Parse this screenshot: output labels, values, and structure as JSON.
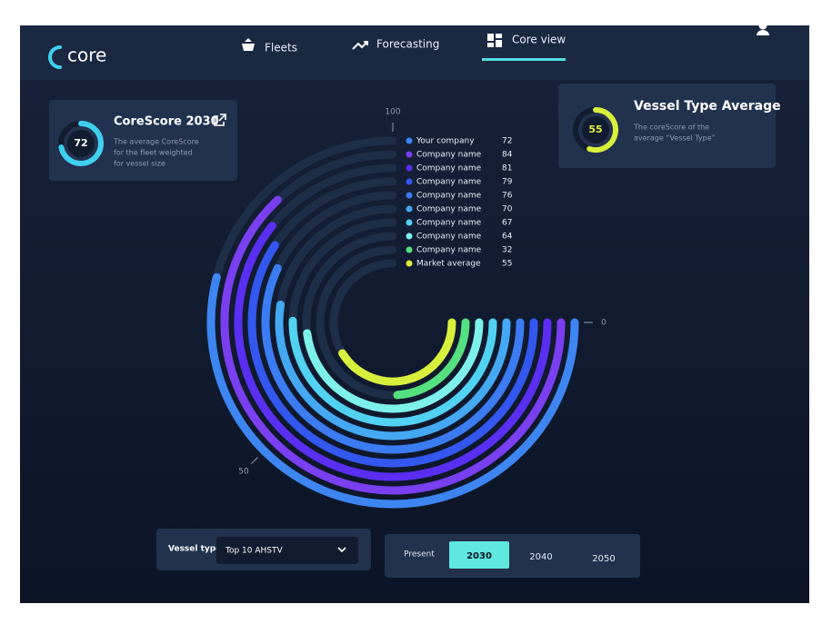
{
  "nav": {
    "logo": "core",
    "items": [
      "Fleets",
      "Forecasting",
      "Core view"
    ]
  },
  "cards": [
    {
      "title": "CoreScore 2030",
      "value": 72,
      "description": [
        "The average CoreScore",
        "for the fleet weighted",
        "for vessel size"
      ]
    },
    {
      "title": "Vessel Type Average",
      "value": 55,
      "description": [
        "The coreScore of the",
        "average “Vessel Type”"
      ]
    }
  ],
  "chart_data": {
    "type": "radial_bar",
    "categories": [
      "Your company",
      "Company name",
      "Company name",
      "Company name",
      "Company name",
      "Company name",
      "Company name",
      "Company name",
      "Company name",
      "Market average"
    ],
    "values": [
      72,
      84,
      81,
      79,
      76,
      70,
      67,
      64,
      32,
      55
    ],
    "colors": [
      "#3d86f2",
      "#7a3ff0",
      "#5a2ff2",
      "#3358f0",
      "#3b7cf2",
      "#44a8f2",
      "#52d2f2",
      "#7ef0ec",
      "#54e07e",
      "#d8f03c"
    ],
    "ylim": [
      0,
      100
    ],
    "yticks": [
      0,
      50,
      100
    ]
  },
  "controls": {
    "label": "Vessel type",
    "select": "Top 10 AHSTV",
    "years": [
      "Present",
      "2030",
      "2040",
      "2050"
    ]
  }
}
